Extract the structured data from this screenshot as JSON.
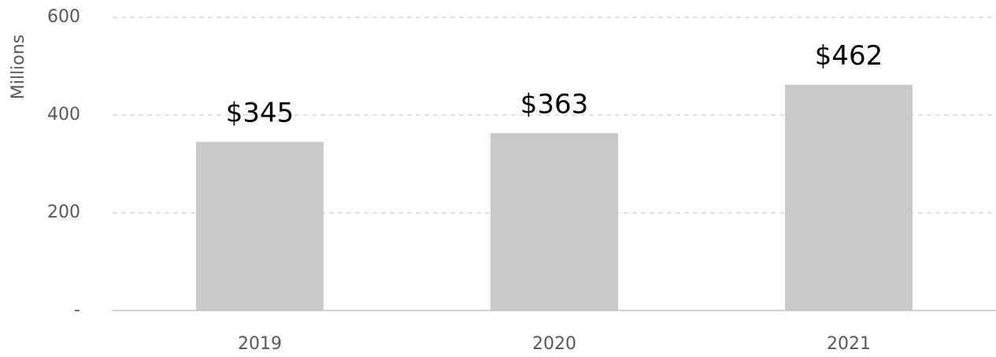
{
  "chart_data": {
    "type": "bar",
    "y_label": "Millions",
    "categories": [
      "2019",
      "2020",
      "2021"
    ],
    "values": [
      345,
      363,
      462
    ],
    "value_labels": [
      "$345",
      "$363",
      "$462"
    ],
    "color": "#c8c8c8",
    "ylim": [
      0,
      600
    ],
    "yticks": [
      {
        "value": 0,
        "label": "-"
      },
      200,
      400,
      600
    ],
    "grid": true
  }
}
